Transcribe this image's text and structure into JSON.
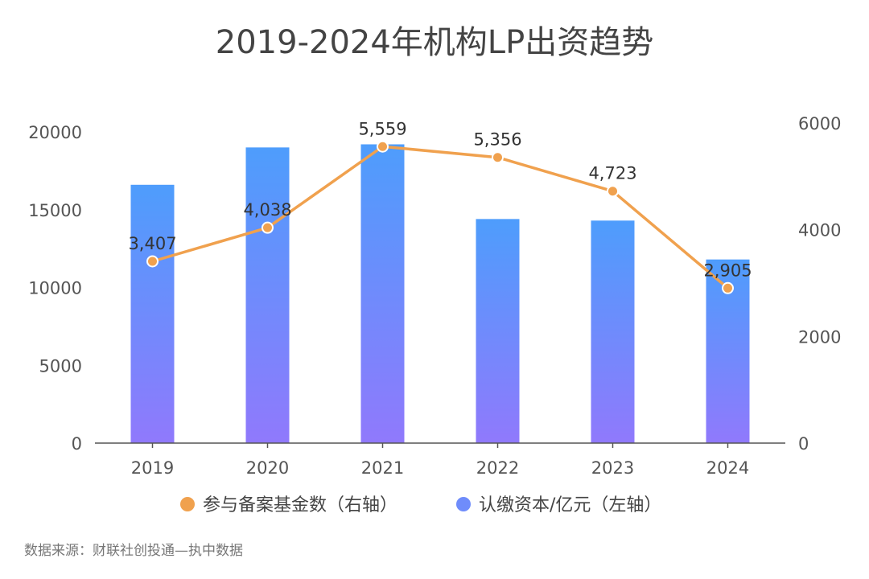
{
  "chart_data": {
    "type": "bar",
    "title": "2019-2024年机构LP出资趋势",
    "categories": [
      "2019",
      "2020",
      "2021",
      "2022",
      "2023",
      "2024"
    ],
    "series": [
      {
        "name": "认缴资本/亿元（左轴）",
        "type": "bar",
        "axis": "left",
        "values": [
          16600,
          19000,
          19200,
          14400,
          14300,
          11800
        ]
      },
      {
        "name": "参与备案基金数（右轴）",
        "type": "line",
        "axis": "right",
        "values": [
          3407,
          4038,
          5559,
          5356,
          4723,
          2905
        ],
        "value_labels": [
          "3,407",
          "4,038",
          "5,559",
          "5,356",
          "4,723",
          "2,905"
        ]
      }
    ],
    "y_left": {
      "ylim": [
        0,
        20000
      ],
      "ticks": [
        "0",
        "5000",
        "10000",
        "15000",
        "20000"
      ]
    },
    "y_right": {
      "ylim": [
        0,
        6000
      ],
      "ticks": [
        "0",
        "2000",
        "4000",
        "6000"
      ]
    },
    "grid": false,
    "legend_position": "bottom"
  },
  "source_text": "数据来源：财联社创投通—执中数据",
  "colors": {
    "bar_top": "#4e9dfc",
    "bar_bottom": "#9079fc",
    "line": "#f0a14e",
    "legend_line_dot": "#f0a14e",
    "legend_bar_dot": "#6f8cfb",
    "axis": "#555555"
  }
}
